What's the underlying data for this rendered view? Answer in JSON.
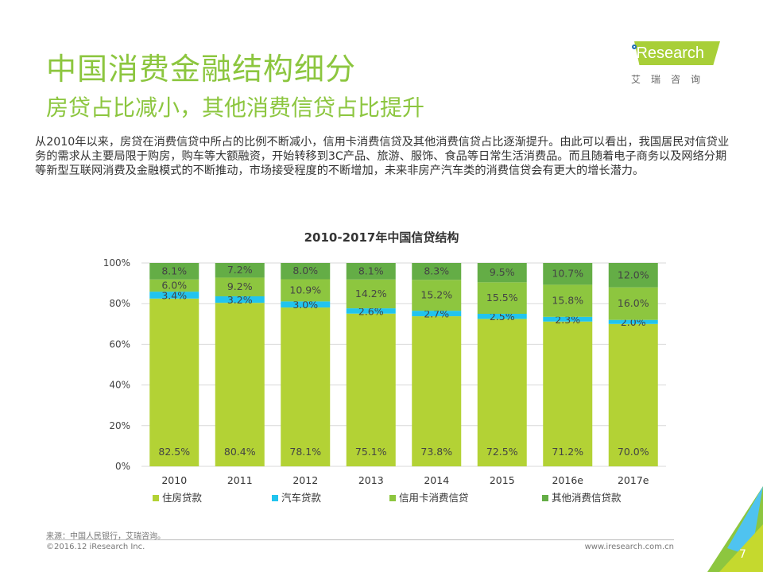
{
  "header": {
    "title": "中国消费金融结构细分",
    "subtitle": "房贷占比减小，其他消费信贷占比提升"
  },
  "logo": {
    "text": "iResearch",
    "cn": "艾瑞咨询"
  },
  "body_text": "从2010年以来，房贷在消费信贷中所占的比例不断减小，信用卡消费信贷及其他消费信贷占比逐渐提升。由此可以看出，我国居民对信贷业务的需求从主要局限于购房，购车等大额融资，开始转移到3C产品、旅游、服饰、食品等日常生活消费品。而且随着电子商务以及网络分期等新型互联网消费及金融模式的不断推动，市场接受程度的不断增加，未来非房产汽车类的消费信贷会有更大的增长潜力。",
  "chart_data": {
    "type": "bar",
    "stacked": true,
    "title": "2010-2017年中国信贷结构",
    "categories": [
      "2010",
      "2011",
      "2012",
      "2013",
      "2014",
      "2015",
      "2016e",
      "2017e"
    ],
    "ylim": [
      0,
      100
    ],
    "yticks": [
      "0%",
      "20%",
      "40%",
      "60%",
      "80%",
      "100%"
    ],
    "grid": true,
    "legend_position": "bottom",
    "series": [
      {
        "name": "住房贷款",
        "color": "#b3d235",
        "values": [
          82.5,
          80.4,
          78.1,
          75.1,
          73.8,
          72.5,
          71.2,
          70.0
        ]
      },
      {
        "name": "汽车贷款",
        "color": "#21c4ee",
        "values": [
          3.4,
          3.2,
          3.0,
          2.6,
          2.7,
          2.5,
          2.3,
          2.0
        ]
      },
      {
        "name": "信用卡消费信贷",
        "color": "#8dc63f",
        "values": [
          6.0,
          9.2,
          10.9,
          14.2,
          15.2,
          15.5,
          15.8,
          16.0
        ]
      },
      {
        "name": "其他消费信贷款",
        "color": "#64ad46",
        "values": [
          8.1,
          7.2,
          8.0,
          8.1,
          8.3,
          9.5,
          10.7,
          12.0
        ]
      }
    ]
  },
  "footer": {
    "source": "来源：中国人民银行，艾瑞咨询。",
    "copyright": "©2016.12 iResearch Inc.",
    "url": "www.iresearch.com.cn",
    "page": "7"
  }
}
